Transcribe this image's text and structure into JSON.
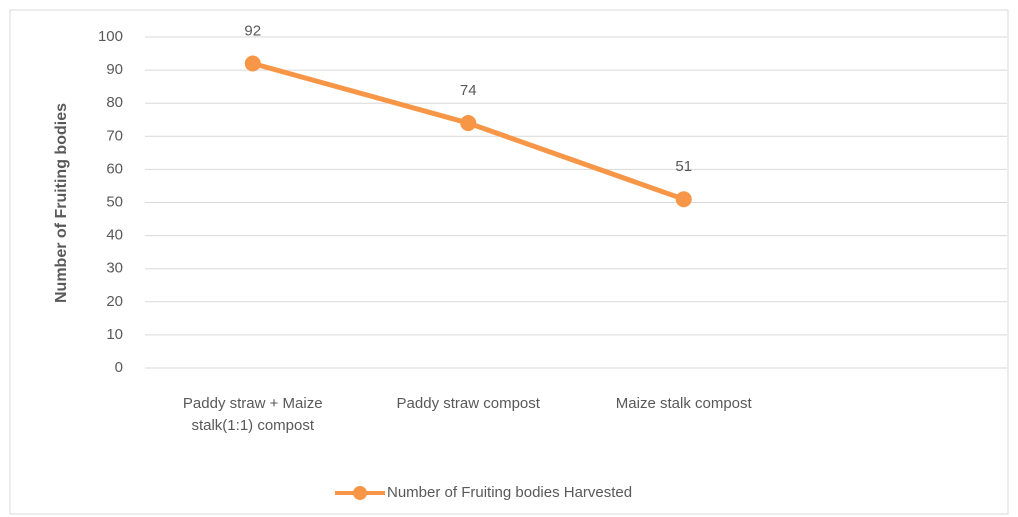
{
  "chart_data": {
    "type": "line",
    "y_label": "Number of Fruiting bodies",
    "categories": [
      "Paddy straw + Maize stalk(1:1) compost",
      "Paddy straw compost",
      "Maize stalk compost",
      null
    ],
    "series": [
      {
        "name": "Number of Fruiting bodies Harvested",
        "color": "#f79646",
        "values": [
          92,
          74,
          51,
          null
        ]
      }
    ],
    "ylim": [
      0,
      100
    ],
    "yticks": [
      0,
      10,
      20,
      30,
      40,
      50,
      60,
      70,
      80,
      90,
      100
    ],
    "grid": true,
    "legend": "bottom"
  }
}
